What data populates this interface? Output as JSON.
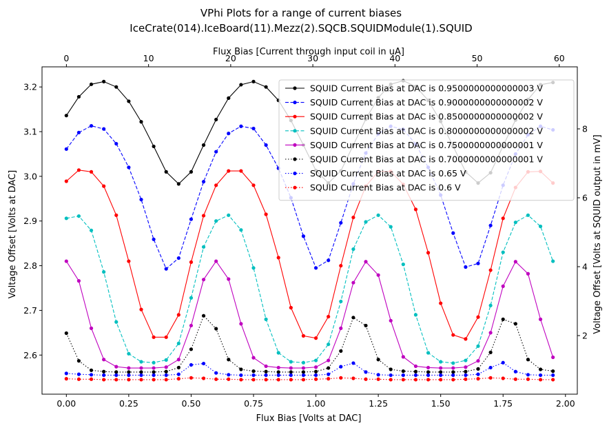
{
  "chart_data": {
    "type": "line",
    "title": "VPhi Plots for a range of current biases",
    "subtitle": "IceCrate(014).IceBoard(11).Mezz(2).SQCB.SQUIDModule(1).SQUID",
    "xlabel": "Flux Bias [Volts at DAC]",
    "ylabel": "Voltage Offset [Volts at DAC]",
    "x2label": "Flux Bias [Current through input coil in uA]",
    "y2label": "Voltage Offset [Volts at SQUID output in mV]",
    "xlim": [
      -0.0975,
      2.0475
    ],
    "ylim": [
      2.5125,
      3.245
    ],
    "x2lim": [
      -2.97,
      62.2
    ],
    "y2lim": [
      0.3,
      9.8
    ],
    "xticks": [
      "0.00",
      "0.25",
      "0.50",
      "0.75",
      "1.00",
      "1.25",
      "1.50",
      "1.75",
      "2.00"
    ],
    "xtick_values": [
      0,
      0.25,
      0.5,
      0.75,
      1.0,
      1.25,
      1.5,
      1.75,
      2.0
    ],
    "yticks": [
      "2.6",
      "2.7",
      "2.8",
      "2.9",
      "3.0",
      "3.1",
      "3.2"
    ],
    "ytick_values": [
      2.6,
      2.7,
      2.8,
      2.9,
      3.0,
      3.1,
      3.2
    ],
    "x2ticks": [
      "0",
      "10",
      "20",
      "30",
      "40",
      "50",
      "60"
    ],
    "x2tick_values": [
      0,
      10,
      20,
      30,
      40,
      50,
      60
    ],
    "y2ticks": [
      "2",
      "4",
      "6",
      "8"
    ],
    "y2tick_values": [
      2,
      4,
      6,
      8
    ],
    "grid": false,
    "legend_position": "top-right",
    "x": [
      0.0,
      0.05,
      0.1,
      0.15,
      0.2,
      0.25,
      0.3,
      0.35,
      0.4,
      0.45,
      0.5,
      0.55,
      0.6,
      0.65,
      0.7,
      0.75,
      0.8,
      0.85,
      0.9,
      0.95,
      1.0,
      1.05,
      1.1,
      1.15,
      1.2,
      1.25,
      1.3,
      1.35,
      1.4,
      1.45,
      1.5,
      1.55,
      1.6,
      1.65,
      1.7,
      1.75,
      1.8,
      1.85,
      1.9,
      1.95
    ],
    "series": [
      {
        "name": "SQUID Current Bias at DAC is 0.9500000000000003 V",
        "color": "#000000",
        "dash": "solid",
        "values": [
          3.136,
          3.178,
          3.206,
          3.212,
          3.2,
          3.168,
          3.122,
          3.067,
          3.01,
          2.983,
          3.01,
          3.07,
          3.127,
          3.175,
          3.205,
          3.212,
          3.2,
          3.17,
          3.125,
          3.07,
          3.013,
          2.985,
          3.012,
          3.07,
          3.128,
          3.176,
          3.206,
          3.214,
          3.201,
          3.17,
          3.123,
          3.067,
          3.01,
          2.985,
          3.008,
          3.068,
          3.126,
          3.172,
          3.205,
          3.21
        ]
      },
      {
        "name": "SQUID Current Bias at DAC is 0.9000000000000002 V",
        "color": "#0000ff",
        "dash": "dashed",
        "values": [
          3.061,
          3.098,
          3.113,
          3.106,
          3.073,
          3.02,
          2.948,
          2.859,
          2.793,
          2.817,
          2.904,
          2.988,
          3.055,
          3.096,
          3.112,
          3.107,
          3.07,
          3.018,
          2.952,
          2.866,
          2.795,
          2.812,
          2.896,
          2.983,
          3.052,
          3.095,
          3.112,
          3.105,
          3.072,
          3.02,
          2.958,
          2.873,
          2.797,
          2.805,
          2.89,
          2.98,
          3.05,
          3.093,
          3.112,
          3.104
        ]
      },
      {
        "name": "SQUID Current Bias at DAC is 0.8500000000000002 V",
        "color": "#ff0000",
        "dash": "solid",
        "values": [
          2.989,
          3.014,
          3.01,
          2.978,
          2.913,
          2.81,
          2.702,
          2.64,
          2.64,
          2.69,
          2.808,
          2.912,
          2.98,
          3.012,
          3.012,
          2.98,
          2.915,
          2.818,
          2.706,
          2.643,
          2.638,
          2.686,
          2.8,
          2.908,
          2.978,
          3.011,
          3.011,
          2.982,
          2.926,
          2.829,
          2.716,
          2.645,
          2.636,
          2.685,
          2.79,
          2.906,
          2.975,
          3.01,
          3.011,
          2.985
        ]
      },
      {
        "name": "SQUID Current Bias at DAC is 0.8000000000000002 V",
        "color": "#00bfbf",
        "dash": "dashed",
        "values": [
          2.906,
          2.911,
          2.879,
          2.786,
          2.674,
          2.603,
          2.585,
          2.583,
          2.589,
          2.626,
          2.728,
          2.842,
          2.9,
          2.913,
          2.88,
          2.795,
          2.68,
          2.605,
          2.585,
          2.583,
          2.588,
          2.624,
          2.72,
          2.837,
          2.898,
          2.913,
          2.887,
          2.803,
          2.69,
          2.605,
          2.585,
          2.582,
          2.588,
          2.62,
          2.711,
          2.83,
          2.897,
          2.913,
          2.888,
          2.81
        ]
      },
      {
        "name": "SQUID Current Bias at DAC is 0.7500000000000001 V",
        "color": "#bf00bf",
        "dash": "solid",
        "values": [
          2.81,
          2.766,
          2.66,
          2.59,
          2.574,
          2.571,
          2.571,
          2.571,
          2.573,
          2.59,
          2.666,
          2.769,
          2.81,
          2.77,
          2.67,
          2.594,
          2.575,
          2.572,
          2.571,
          2.571,
          2.573,
          2.588,
          2.66,
          2.762,
          2.809,
          2.779,
          2.677,
          2.596,
          2.575,
          2.572,
          2.571,
          2.571,
          2.573,
          2.587,
          2.65,
          2.754,
          2.809,
          2.782,
          2.68,
          2.595
        ]
      },
      {
        "name": "SQUID Current Bias at DAC is 0.7000000000000001 V",
        "color": "#000000",
        "dash": "dotted",
        "values": [
          2.649,
          2.587,
          2.566,
          2.563,
          2.562,
          2.562,
          2.562,
          2.562,
          2.563,
          2.572,
          2.613,
          2.688,
          2.659,
          2.59,
          2.568,
          2.564,
          2.563,
          2.562,
          2.562,
          2.562,
          2.563,
          2.571,
          2.609,
          2.684,
          2.666,
          2.59,
          2.568,
          2.564,
          2.563,
          2.562,
          2.562,
          2.562,
          2.563,
          2.569,
          2.606,
          2.68,
          2.67,
          2.59,
          2.568,
          2.564
        ]
      },
      {
        "name": "SQUID Current Bias at DAC is 0.65 V",
        "color": "#0000ff",
        "dash": "dotted",
        "values": [
          2.559,
          2.557,
          2.556,
          2.555,
          2.555,
          2.555,
          2.555,
          2.555,
          2.555,
          2.557,
          2.578,
          2.581,
          2.56,
          2.556,
          2.555,
          2.555,
          2.555,
          2.555,
          2.555,
          2.555,
          2.555,
          2.557,
          2.574,
          2.582,
          2.562,
          2.556,
          2.555,
          2.555,
          2.555,
          2.555,
          2.555,
          2.555,
          2.555,
          2.557,
          2.572,
          2.583,
          2.563,
          2.556,
          2.555,
          2.555
        ]
      },
      {
        "name": "SQUID Current Bias at DAC is 0.6 V",
        "color": "#ff0000",
        "dash": "dotted",
        "values": [
          2.547,
          2.546,
          2.546,
          2.545,
          2.545,
          2.545,
          2.545,
          2.545,
          2.545,
          2.547,
          2.549,
          2.548,
          2.546,
          2.546,
          2.545,
          2.545,
          2.545,
          2.545,
          2.545,
          2.545,
          2.546,
          2.547,
          2.549,
          2.548,
          2.546,
          2.546,
          2.545,
          2.545,
          2.545,
          2.545,
          2.545,
          2.545,
          2.546,
          2.547,
          2.549,
          2.548,
          2.546,
          2.546,
          2.545,
          2.545
        ]
      }
    ]
  }
}
